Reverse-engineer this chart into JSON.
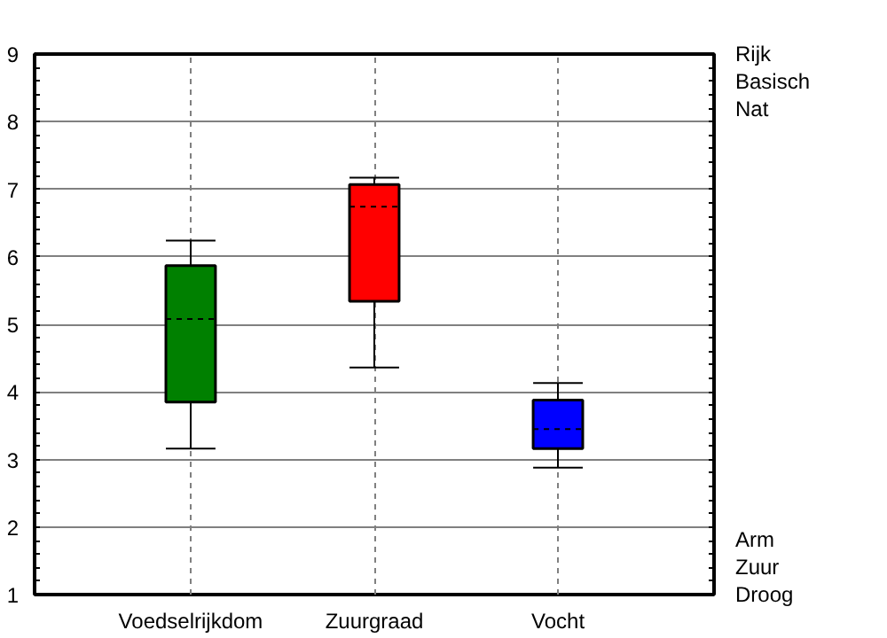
{
  "chart_data": {
    "type": "box",
    "categories": [
      "Voedselrijkdom",
      "Zuurgraad",
      "Vocht"
    ],
    "boxes": [
      {
        "low": 3.16,
        "q1": 3.85,
        "median": 5.08,
        "q3": 5.87,
        "high": 6.24
      },
      {
        "low": 4.36,
        "q1": 5.34,
        "median": 6.74,
        "q3": 7.07,
        "high": 7.17
      },
      {
        "low": 2.88,
        "q1": 3.16,
        "median": 3.45,
        "q3": 3.88,
        "high": 4.13
      }
    ],
    "colors": [
      "#008000",
      "#ff0000",
      "#0000ff"
    ],
    "ylim": [
      1,
      9
    ],
    "yticks": [
      1,
      2,
      3,
      4,
      5,
      6,
      7,
      8,
      9
    ],
    "grid": true,
    "annotations": [
      "Rijk",
      "Basisch",
      "Nat",
      "Arm",
      "Zuur",
      "Droog"
    ]
  }
}
